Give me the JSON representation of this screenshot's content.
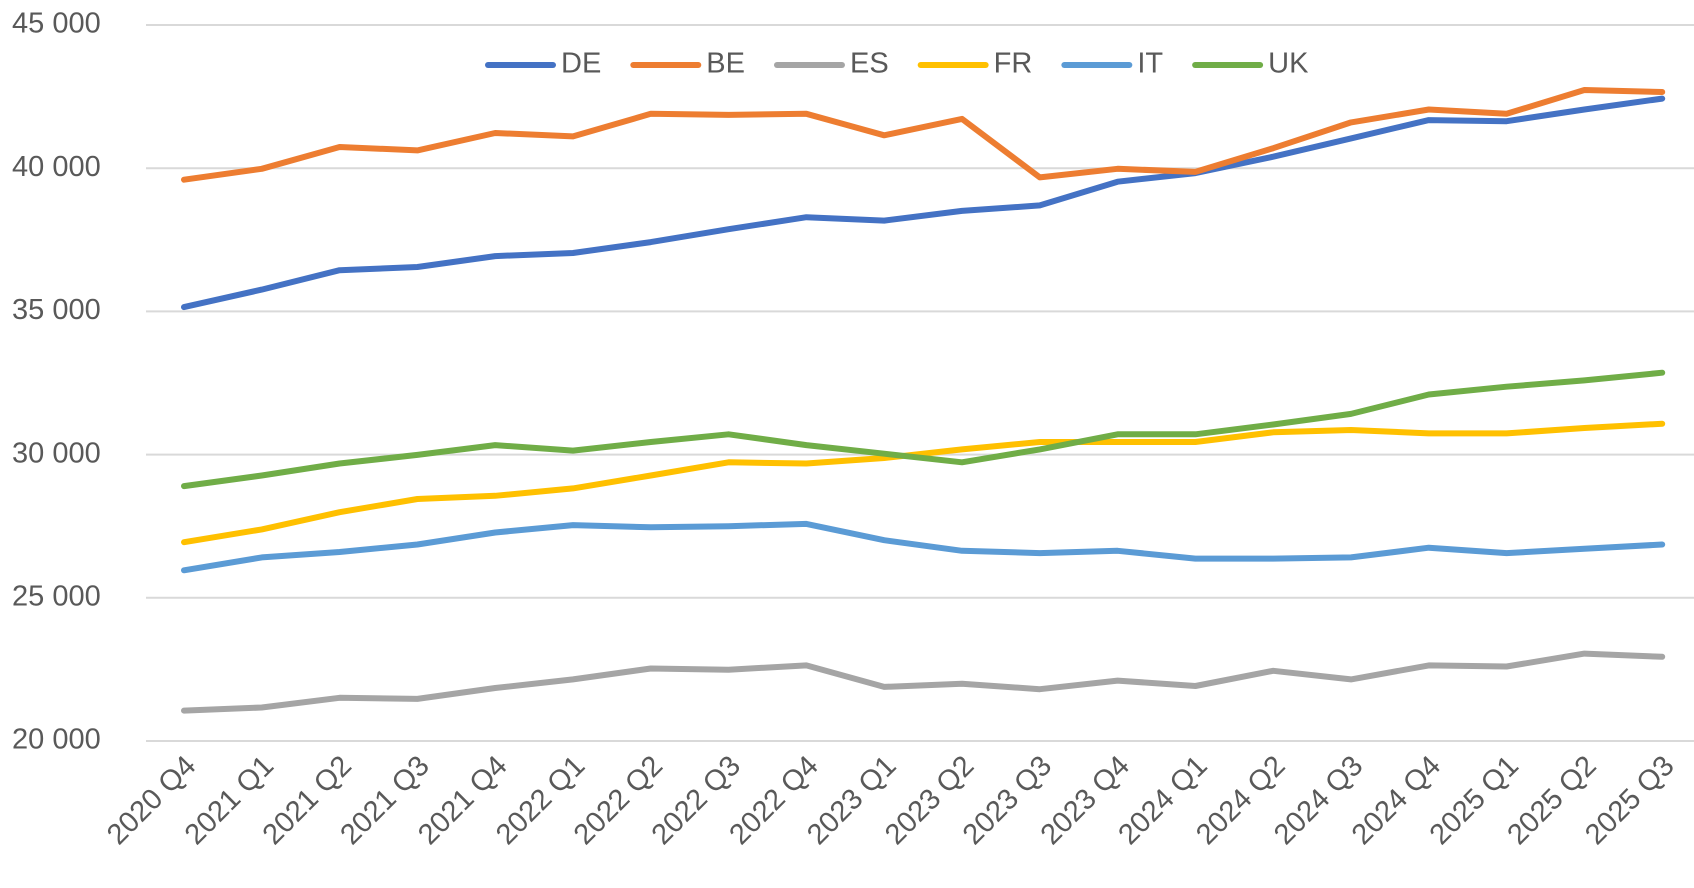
{
  "chart_data": {
    "type": "line",
    "categories": [
      "2020 Q4",
      "2021 Q1",
      "2021 Q2",
      "2021 Q3",
      "2021 Q4",
      "2022 Q1",
      "2022 Q2",
      "2022 Q3",
      "2022 Q4",
      "2023 Q1",
      "2023 Q2",
      "2023 Q3",
      "2023 Q4",
      "2024 Q1",
      "2024 Q2",
      "2024 Q3",
      "2024 Q4",
      "2025 Q1",
      "2025 Q2",
      "2025 Q3"
    ],
    "series": [
      {
        "name": "DE",
        "color": "#4472c4",
        "values": [
          35150,
          35760,
          36440,
          36550,
          36930,
          37040,
          37420,
          37870,
          38290,
          38170,
          38510,
          38700,
          39530,
          39830,
          40400,
          41040,
          41680,
          41640,
          42050,
          42430
        ]
      },
      {
        "name": "BE",
        "color": "#ed7d31",
        "values": [
          39600,
          39980,
          40740,
          40620,
          41230,
          41110,
          41900,
          41860,
          41900,
          41150,
          41720,
          39680,
          39980,
          39870,
          40700,
          41600,
          42050,
          41900,
          42730,
          42660
        ]
      },
      {
        "name": "ES",
        "color": "#a5a5a5",
        "values": [
          21060,
          21170,
          21510,
          21470,
          21850,
          22150,
          22530,
          22490,
          22640,
          21890,
          22000,
          21810,
          22110,
          21920,
          22450,
          22150,
          22640,
          22600,
          23050,
          22940
        ]
      },
      {
        "name": "FR",
        "color": "#ffc000",
        "values": [
          26940,
          27390,
          27990,
          28450,
          28560,
          28820,
          29270,
          29730,
          29690,
          29880,
          30180,
          30440,
          30440,
          30440,
          30780,
          30860,
          30740,
          30740,
          30930,
          31080
        ]
      },
      {
        "name": "IT",
        "color": "#5b9bd5",
        "values": [
          25960,
          26410,
          26600,
          26860,
          27280,
          27540,
          27460,
          27500,
          27580,
          27010,
          26640,
          26560,
          26640,
          26370,
          26370,
          26410,
          26750,
          26560,
          26710,
          26860
        ]
      },
      {
        "name": "UK",
        "color": "#70ad47",
        "values": [
          28900,
          29270,
          29690,
          29990,
          30330,
          30140,
          30440,
          30710,
          30330,
          30030,
          29730,
          30180,
          30710,
          30710,
          31050,
          31420,
          32100,
          32370,
          32590,
          32860
        ]
      }
    ],
    "ylim": [
      20000,
      45000
    ],
    "yticks": [
      {
        "value": 20000,
        "label": "20 000"
      },
      {
        "value": 25000,
        "label": "25 000"
      },
      {
        "value": 30000,
        "label": "30 000"
      },
      {
        "value": 35000,
        "label": "35 000"
      },
      {
        "value": 40000,
        "label": "40 000"
      },
      {
        "value": 45000,
        "label": "45 000"
      }
    ],
    "grid": true,
    "legend": "top"
  }
}
